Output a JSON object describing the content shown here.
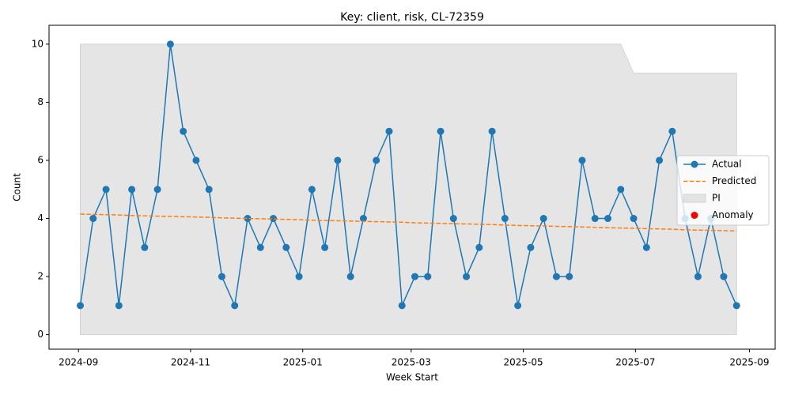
{
  "chart_data": {
    "type": "line",
    "title": "Key: client, risk, CL-72359",
    "xlabel": "Week Start",
    "ylabel": "Count",
    "x": [
      "2024-09-02",
      "2024-09-09",
      "2024-09-16",
      "2024-09-23",
      "2024-09-30",
      "2024-10-07",
      "2024-10-14",
      "2024-10-21",
      "2024-10-28",
      "2024-11-04",
      "2024-11-11",
      "2024-11-18",
      "2024-11-25",
      "2024-12-02",
      "2024-12-09",
      "2024-12-16",
      "2024-12-23",
      "2024-12-30",
      "2025-01-06",
      "2025-01-13",
      "2025-01-20",
      "2025-01-27",
      "2025-02-03",
      "2025-02-10",
      "2025-02-17",
      "2025-02-24",
      "2025-03-03",
      "2025-03-10",
      "2025-03-17",
      "2025-03-24",
      "2025-03-31",
      "2025-04-07",
      "2025-04-14",
      "2025-04-21",
      "2025-04-28",
      "2025-05-05",
      "2025-05-12",
      "2025-05-19",
      "2025-05-26",
      "2025-06-02",
      "2025-06-09",
      "2025-06-16",
      "2025-06-23",
      "2025-06-30",
      "2025-07-07",
      "2025-07-14",
      "2025-07-21",
      "2025-07-28",
      "2025-08-04",
      "2025-08-11",
      "2025-08-18",
      "2025-08-25"
    ],
    "series": [
      {
        "name": "Actual",
        "color": "#1f77b4",
        "marker": "o",
        "values": [
          1,
          4,
          5,
          1,
          5,
          3,
          5,
          10,
          7,
          6,
          5,
          2,
          1,
          4,
          3,
          4,
          3,
          2,
          5,
          3,
          6,
          2,
          4,
          6,
          7,
          1,
          2,
          2,
          7,
          4,
          2,
          3,
          7,
          4,
          1,
          3,
          4,
          2,
          2,
          6,
          4,
          4,
          5,
          4,
          3,
          6,
          7,
          4,
          2,
          4,
          2,
          1
        ]
      },
      {
        "name": "Predicted",
        "color": "#ff7f0e",
        "dash": "dashed",
        "values": [
          4.15,
          4.14,
          4.13,
          4.12,
          4.1,
          4.09,
          4.08,
          4.07,
          4.06,
          4.05,
          4.04,
          4.02,
          4.01,
          4.0,
          3.99,
          3.98,
          3.97,
          3.96,
          3.94,
          3.93,
          3.92,
          3.91,
          3.9,
          3.89,
          3.88,
          3.87,
          3.85,
          3.84,
          3.83,
          3.82,
          3.81,
          3.8,
          3.79,
          3.77,
          3.76,
          3.75,
          3.74,
          3.73,
          3.72,
          3.71,
          3.69,
          3.68,
          3.67,
          3.66,
          3.65,
          3.64,
          3.63,
          3.61,
          3.6,
          3.59,
          3.58,
          3.57
        ]
      },
      {
        "name": "PI",
        "color": "#d3d3d3",
        "kind": "band",
        "lower": [
          0,
          0,
          0,
          0,
          0,
          0,
          0,
          0,
          0,
          0,
          0,
          0,
          0,
          0,
          0,
          0,
          0,
          0,
          0,
          0,
          0,
          0,
          0,
          0,
          0,
          0,
          0,
          0,
          0,
          0,
          0,
          0,
          0,
          0,
          0,
          0,
          0,
          0,
          0,
          0,
          0,
          0,
          0,
          0,
          0,
          0,
          0,
          0,
          0,
          0,
          0,
          0
        ],
        "upper": [
          10,
          10,
          10,
          10,
          10,
          10,
          10,
          10,
          10,
          10,
          10,
          10,
          10,
          10,
          10,
          10,
          10,
          10,
          10,
          10,
          10,
          10,
          10,
          10,
          10,
          10,
          10,
          10,
          10,
          10,
          10,
          10,
          10,
          10,
          10,
          10,
          10,
          10,
          10,
          10,
          10,
          10,
          10,
          9,
          9,
          9,
          9,
          9,
          9,
          9,
          9,
          9
        ]
      },
      {
        "name": "Anomaly",
        "color": "#ff0000",
        "kind": "scatter",
        "values": [
          null,
          null,
          null,
          null,
          null,
          null,
          null,
          null,
          null,
          null,
          null,
          null,
          null,
          null,
          null,
          null,
          null,
          null,
          null,
          null,
          null,
          null,
          null,
          null,
          null,
          null,
          null,
          null,
          null,
          null,
          null,
          null,
          null,
          null,
          null,
          null,
          null,
          null,
          null,
          null,
          null,
          null,
          null,
          null,
          null,
          null,
          null,
          null,
          null,
          null,
          null,
          null
        ]
      }
    ],
    "xlim": [
      "2024-08-16",
      "2025-09-15"
    ],
    "xticks": [
      {
        "value": "2024-09-01",
        "label": "2024-09"
      },
      {
        "value": "2024-11-01",
        "label": "2024-11"
      },
      {
        "value": "2025-01-01",
        "label": "2025-01"
      },
      {
        "value": "2025-03-01",
        "label": "2025-03"
      },
      {
        "value": "2025-05-01",
        "label": "2025-05"
      },
      {
        "value": "2025-07-01",
        "label": "2025-07"
      },
      {
        "value": "2025-09-01",
        "label": "2025-09"
      }
    ],
    "ylim": [
      -0.5,
      10.65
    ],
    "yticks": [
      0,
      2,
      4,
      6,
      8,
      10
    ],
    "grid": false,
    "legend": "center right"
  }
}
